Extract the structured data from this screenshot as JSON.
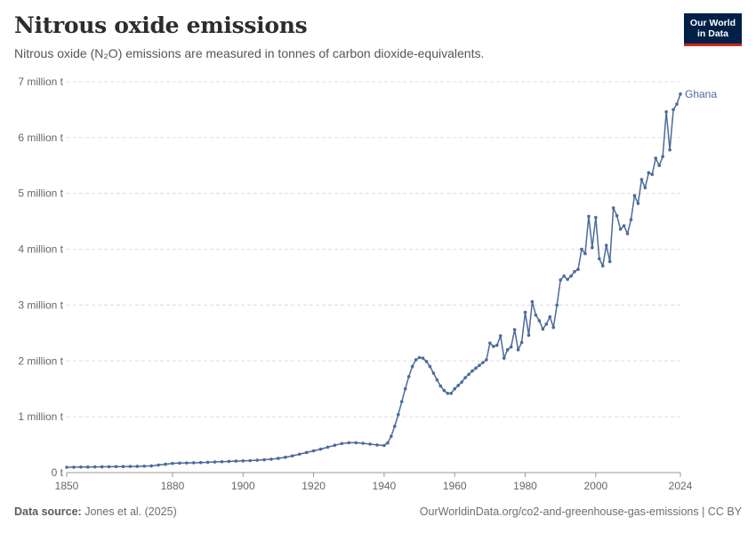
{
  "header": {
    "title": "Nitrous oxide emissions",
    "subtitle": "Nitrous oxide (N₂O) emissions are measured in tonnes of carbon dioxide-equivalents.",
    "logo_line1": "Our World",
    "logo_line2": "in Data"
  },
  "footer": {
    "source_label": "Data source:",
    "source_text": "Jones et al. (2025)",
    "url": "OurWorldinData.org/co2-and-greenhouse-gas-emissions | CC BY"
  },
  "colors": {
    "series": "#4c6a9c",
    "grid": "#dddddd",
    "logo_bg": "#002147",
    "logo_accent": "#ce261e"
  },
  "chart_data": {
    "type": "line",
    "title": "Nitrous oxide emissions",
    "ylabel": "",
    "xlabel": "",
    "xlim": [
      1850,
      2024
    ],
    "ylim": [
      0,
      7000000
    ],
    "grid": true,
    "y_ticks": [
      {
        "value": 0,
        "label": "0 t"
      },
      {
        "value": 1000000,
        "label": "1 million t"
      },
      {
        "value": 2000000,
        "label": "2 million t"
      },
      {
        "value": 3000000,
        "label": "3 million t"
      },
      {
        "value": 4000000,
        "label": "4 million t"
      },
      {
        "value": 5000000,
        "label": "5 million t"
      },
      {
        "value": 6000000,
        "label": "6 million t"
      },
      {
        "value": 7000000,
        "label": "7 million t"
      }
    ],
    "x_ticks": [
      1850,
      1880,
      1900,
      1920,
      1940,
      1960,
      1980,
      2000,
      2024
    ],
    "series": [
      {
        "name": "Ghana",
        "unit": "t",
        "points": [
          [
            1850,
            95000
          ],
          [
            1852,
            97000
          ],
          [
            1854,
            99000
          ],
          [
            1856,
            100000
          ],
          [
            1858,
            102000
          ],
          [
            1860,
            104000
          ],
          [
            1862,
            105000
          ],
          [
            1864,
            107000
          ],
          [
            1866,
            108000
          ],
          [
            1868,
            110000
          ],
          [
            1870,
            112000
          ],
          [
            1872,
            115000
          ],
          [
            1874,
            120000
          ],
          [
            1876,
            135000
          ],
          [
            1878,
            150000
          ],
          [
            1880,
            165000
          ],
          [
            1882,
            170000
          ],
          [
            1884,
            173000
          ],
          [
            1886,
            176000
          ],
          [
            1888,
            180000
          ],
          [
            1890,
            185000
          ],
          [
            1892,
            190000
          ],
          [
            1894,
            195000
          ],
          [
            1896,
            200000
          ],
          [
            1898,
            205000
          ],
          [
            1900,
            210000
          ],
          [
            1902,
            215000
          ],
          [
            1904,
            222000
          ],
          [
            1906,
            230000
          ],
          [
            1908,
            240000
          ],
          [
            1910,
            255000
          ],
          [
            1912,
            275000
          ],
          [
            1914,
            300000
          ],
          [
            1916,
            330000
          ],
          [
            1918,
            360000
          ],
          [
            1920,
            390000
          ],
          [
            1922,
            420000
          ],
          [
            1924,
            455000
          ],
          [
            1926,
            490000
          ],
          [
            1928,
            520000
          ],
          [
            1930,
            535000
          ],
          [
            1932,
            535000
          ],
          [
            1934,
            525000
          ],
          [
            1936,
            510000
          ],
          [
            1938,
            495000
          ],
          [
            1940,
            485000
          ],
          [
            1941,
            530000
          ],
          [
            1942,
            650000
          ],
          [
            1943,
            830000
          ],
          [
            1944,
            1040000
          ],
          [
            1945,
            1270000
          ],
          [
            1946,
            1500000
          ],
          [
            1947,
            1720000
          ],
          [
            1948,
            1900000
          ],
          [
            1949,
            2020000
          ],
          [
            1950,
            2060000
          ],
          [
            1951,
            2050000
          ],
          [
            1952,
            1990000
          ],
          [
            1953,
            1900000
          ],
          [
            1954,
            1780000
          ],
          [
            1955,
            1660000
          ],
          [
            1956,
            1550000
          ],
          [
            1957,
            1470000
          ],
          [
            1958,
            1420000
          ],
          [
            1959,
            1420000
          ],
          [
            1960,
            1500000
          ],
          [
            1961,
            1560000
          ],
          [
            1962,
            1620000
          ],
          [
            1963,
            1700000
          ],
          [
            1964,
            1760000
          ],
          [
            1965,
            1820000
          ],
          [
            1966,
            1870000
          ],
          [
            1967,
            1920000
          ],
          [
            1968,
            1970000
          ],
          [
            1969,
            2020000
          ],
          [
            1970,
            2320000
          ],
          [
            1971,
            2260000
          ],
          [
            1972,
            2280000
          ],
          [
            1973,
            2450000
          ],
          [
            1974,
            2050000
          ],
          [
            1975,
            2200000
          ],
          [
            1976,
            2250000
          ],
          [
            1977,
            2560000
          ],
          [
            1978,
            2200000
          ],
          [
            1979,
            2330000
          ],
          [
            1980,
            2870000
          ],
          [
            1981,
            2460000
          ],
          [
            1982,
            3060000
          ],
          [
            1983,
            2820000
          ],
          [
            1984,
            2720000
          ],
          [
            1985,
            2570000
          ],
          [
            1986,
            2660000
          ],
          [
            1987,
            2790000
          ],
          [
            1988,
            2600000
          ],
          [
            1989,
            3000000
          ],
          [
            1990,
            3450000
          ],
          [
            1991,
            3520000
          ],
          [
            1992,
            3460000
          ],
          [
            1993,
            3520000
          ],
          [
            1994,
            3600000
          ],
          [
            1995,
            3640000
          ],
          [
            1996,
            4000000
          ],
          [
            1997,
            3920000
          ],
          [
            1998,
            4590000
          ],
          [
            1999,
            4030000
          ],
          [
            2000,
            4570000
          ],
          [
            2001,
            3830000
          ],
          [
            2002,
            3700000
          ],
          [
            2003,
            4070000
          ],
          [
            2004,
            3780000
          ],
          [
            2005,
            4740000
          ],
          [
            2006,
            4600000
          ],
          [
            2007,
            4360000
          ],
          [
            2008,
            4420000
          ],
          [
            2009,
            4280000
          ],
          [
            2010,
            4530000
          ],
          [
            2011,
            4960000
          ],
          [
            2012,
            4820000
          ],
          [
            2013,
            5250000
          ],
          [
            2014,
            5100000
          ],
          [
            2015,
            5370000
          ],
          [
            2016,
            5340000
          ],
          [
            2017,
            5630000
          ],
          [
            2018,
            5500000
          ],
          [
            2019,
            5660000
          ],
          [
            2020,
            6460000
          ],
          [
            2021,
            5780000
          ],
          [
            2022,
            6500000
          ],
          [
            2023,
            6600000
          ],
          [
            2024,
            6780000
          ]
        ]
      }
    ]
  }
}
